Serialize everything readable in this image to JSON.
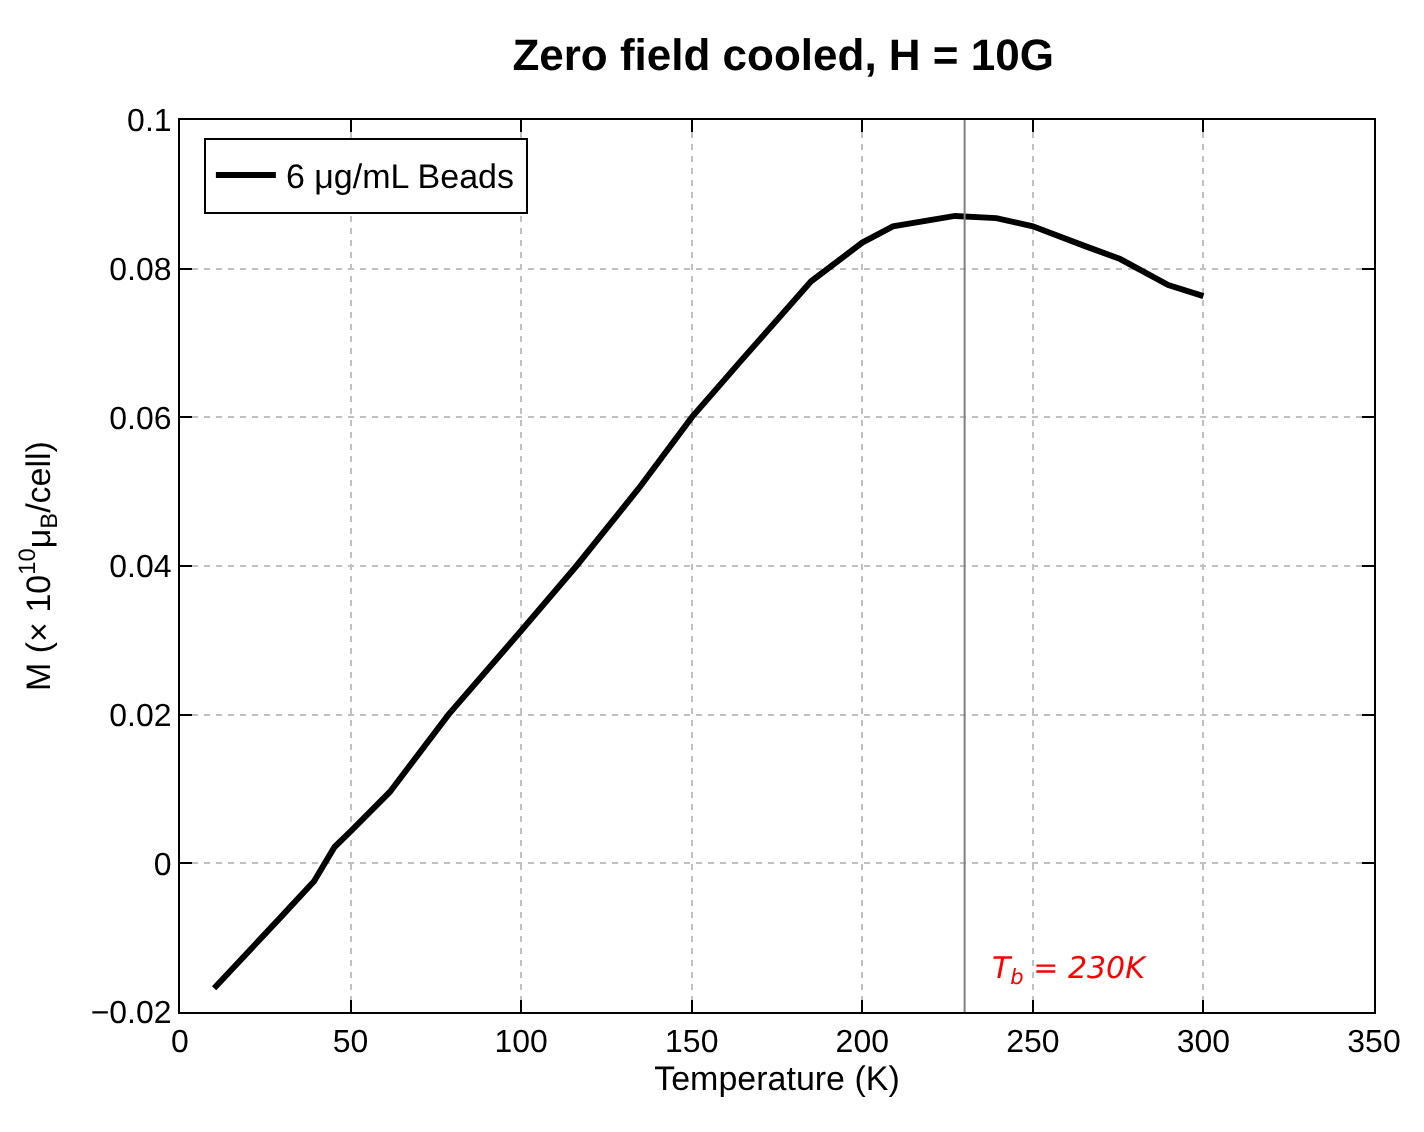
{
  "chart_data": {
    "type": "line",
    "title": "Zero field cooled, H = 10G",
    "xlabel": "Temperature (K)",
    "ylabel": "M (× 10$^{10}$μ$_{B}$/cell)",
    "x": [
      10,
      29.2,
      39.3,
      45.3,
      50,
      61.5,
      78.7,
      100,
      116.2,
      134.4,
      150,
      164.8,
      185,
      200,
      209,
      227.2,
      239.3,
      250,
      265.5,
      275.6,
      289.7,
      300
    ],
    "series": [
      {
        "name": "6 μg/mL Beads",
        "color": "#000000",
        "values": [
          -0.0168,
          -0.0074,
          -0.0024,
          0.0022,
          0.0043,
          0.0096,
          0.02,
          0.0313,
          0.04,
          0.0504,
          0.06,
          0.0678,
          0.0783,
          0.0835,
          0.0857,
          0.0871,
          0.0868,
          0.0857,
          0.083,
          0.0813,
          0.0778,
          0.0763
        ]
      }
    ],
    "xlim": [
      0,
      350
    ],
    "xticks": [
      0,
      50,
      100,
      150,
      200,
      250,
      300,
      350
    ],
    "ylim": [
      -0.02,
      0.1
    ],
    "yticks": [
      {
        "value": -0.02,
        "label": "−0.02"
      },
      0,
      0.02,
      0.04,
      0.06,
      0.08,
      0.1
    ],
    "ref_lines": [
      {
        "axis": "x",
        "value": 230,
        "label": "T$_{b}$ = 230K",
        "color": "#808080"
      }
    ],
    "grid": true,
    "legend": "top left",
    "line_style": "solid",
    "marker": "none"
  }
}
